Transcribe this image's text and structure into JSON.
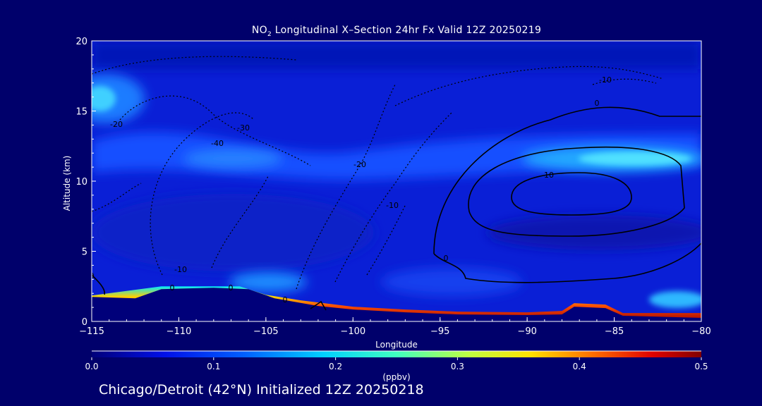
{
  "chart_data": {
    "type": "heatmap",
    "title_prefix": "NO",
    "title_sub": "2",
    "title_suffix": " Longitudinal X–Section 24hr  Fx Valid 12Z 20250219",
    "xlabel": "Longitude",
    "ylabel": "Altitude (km)",
    "xlim": [
      -115,
      -80
    ],
    "ylim": [
      0,
      20
    ],
    "x_ticks": [
      -115,
      -110,
      -105,
      -100,
      -95,
      -90,
      -85,
      -80
    ],
    "x_tick_labels": [
      "−115",
      "−110",
      "−105",
      "−100",
      "−95",
      "−90",
      "−85",
      "−80"
    ],
    "y_ticks": [
      0,
      5,
      10,
      15,
      20
    ],
    "colorbar": {
      "label": "(ppbv)",
      "range": [
        0.0,
        0.5
      ],
      "ticks": [
        "0.0",
        "0.1",
        "0.2",
        "0.3",
        "0.4",
        "0.5"
      ]
    },
    "terrain_km": [
      [
        -115,
        1.75
      ],
      [
        -112.5,
        1.65
      ],
      [
        -111,
        2.3
      ],
      [
        -108,
        2.4
      ],
      [
        -106,
        2.3
      ],
      [
        -104.5,
        1.65
      ],
      [
        -102,
        1.1
      ],
      [
        -100,
        0.85
      ],
      [
        -97,
        0.65
      ],
      [
        -94,
        0.5
      ],
      [
        -90,
        0.45
      ],
      [
        -88,
        0.5
      ],
      [
        -87.3,
        1.05
      ],
      [
        -85.5,
        0.95
      ],
      [
        -84.5,
        0.4
      ],
      [
        -80,
        0.25
      ]
    ],
    "high_no2_layer": [
      [
        -115,
        1.85
      ],
      [
        -111,
        2.5
      ],
      [
        -106.5,
        2.5
      ],
      [
        -105,
        1.9
      ],
      [
        -103,
        1.5
      ],
      [
        -100,
        1.05
      ],
      [
        -97,
        0.85
      ],
      [
        -94,
        0.7
      ],
      [
        -90,
        0.65
      ],
      [
        -88,
        0.75
      ],
      [
        -87.3,
        1.3
      ],
      [
        -85.5,
        1.2
      ],
      [
        -84.5,
        0.6
      ],
      [
        -80,
        0.6
      ]
    ],
    "no2_field_features": [
      {
        "lon": -114,
        "alt": 16.0,
        "level": 0.18
      },
      {
        "lon": -106,
        "alt": 12.5,
        "level": 0.15
      },
      {
        "lon": -87,
        "alt": 11.5,
        "level": 0.2
      },
      {
        "lon": -104,
        "alt": 3.0,
        "level": 0.2
      }
    ],
    "contour_labels": [
      "-20",
      "-30",
      "-40",
      "-20",
      "0",
      "-10",
      "0",
      "10",
      "0",
      "-10",
      "0",
      "0",
      "-10",
      "0"
    ]
  },
  "footer": "Chicago/Detroit (42°N) Initialized 12Z 20250218"
}
